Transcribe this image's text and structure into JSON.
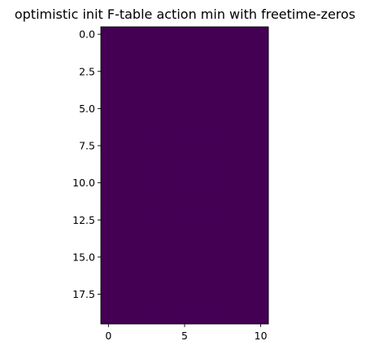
{
  "chart_data": {
    "type": "heatmap",
    "title": "optimistic init F-table action min with freetime-zeros",
    "xlabel": "",
    "ylabel": "",
    "n_rows": 20,
    "n_cols": 11,
    "xlim": [
      -0.5,
      10.5
    ],
    "ylim": [
      19.5,
      -0.5
    ],
    "x_ticks": [
      0,
      5,
      10
    ],
    "x_tick_labels": [
      "0",
      "5",
      "10"
    ],
    "y_ticks": [
      0.0,
      2.5,
      5.0,
      7.5,
      10.0,
      12.5,
      15.0,
      17.5
    ],
    "y_tick_labels": [
      "0.0",
      "2.5",
      "5.0",
      "7.5",
      "10.0",
      "12.5",
      "15.0",
      "17.5"
    ],
    "cell_value": 0,
    "colormap": "viridis",
    "fill_color": "#440154",
    "grid": false
  }
}
